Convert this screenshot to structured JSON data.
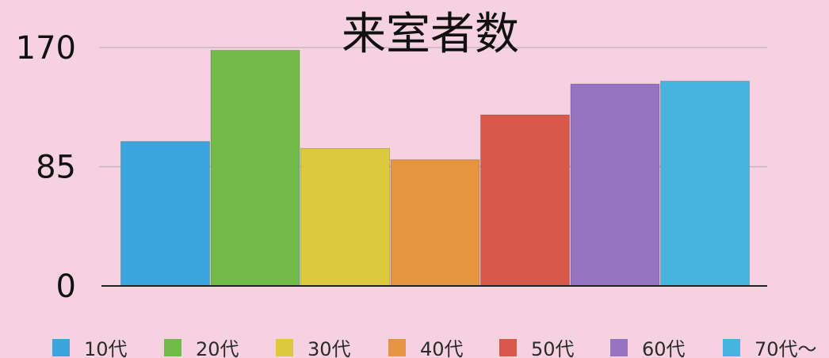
{
  "chart_data": {
    "type": "bar",
    "title": "来室者数",
    "xlabel": "",
    "ylabel": "",
    "ylim": [
      0,
      170
    ],
    "yticks": [
      0,
      85,
      170
    ],
    "grid": true,
    "legend_position": "bottom",
    "categories": [
      "10代",
      "20代",
      "30代",
      "40代",
      "50代",
      "60代",
      "70代〜"
    ],
    "values": [
      103,
      168,
      98,
      90,
      122,
      144,
      146
    ],
    "colors": [
      "#3aa6dd",
      "#72bb4a",
      "#dcca3c",
      "#e59440",
      "#d9584c",
      "#9575c2",
      "#47b3e0"
    ]
  }
}
